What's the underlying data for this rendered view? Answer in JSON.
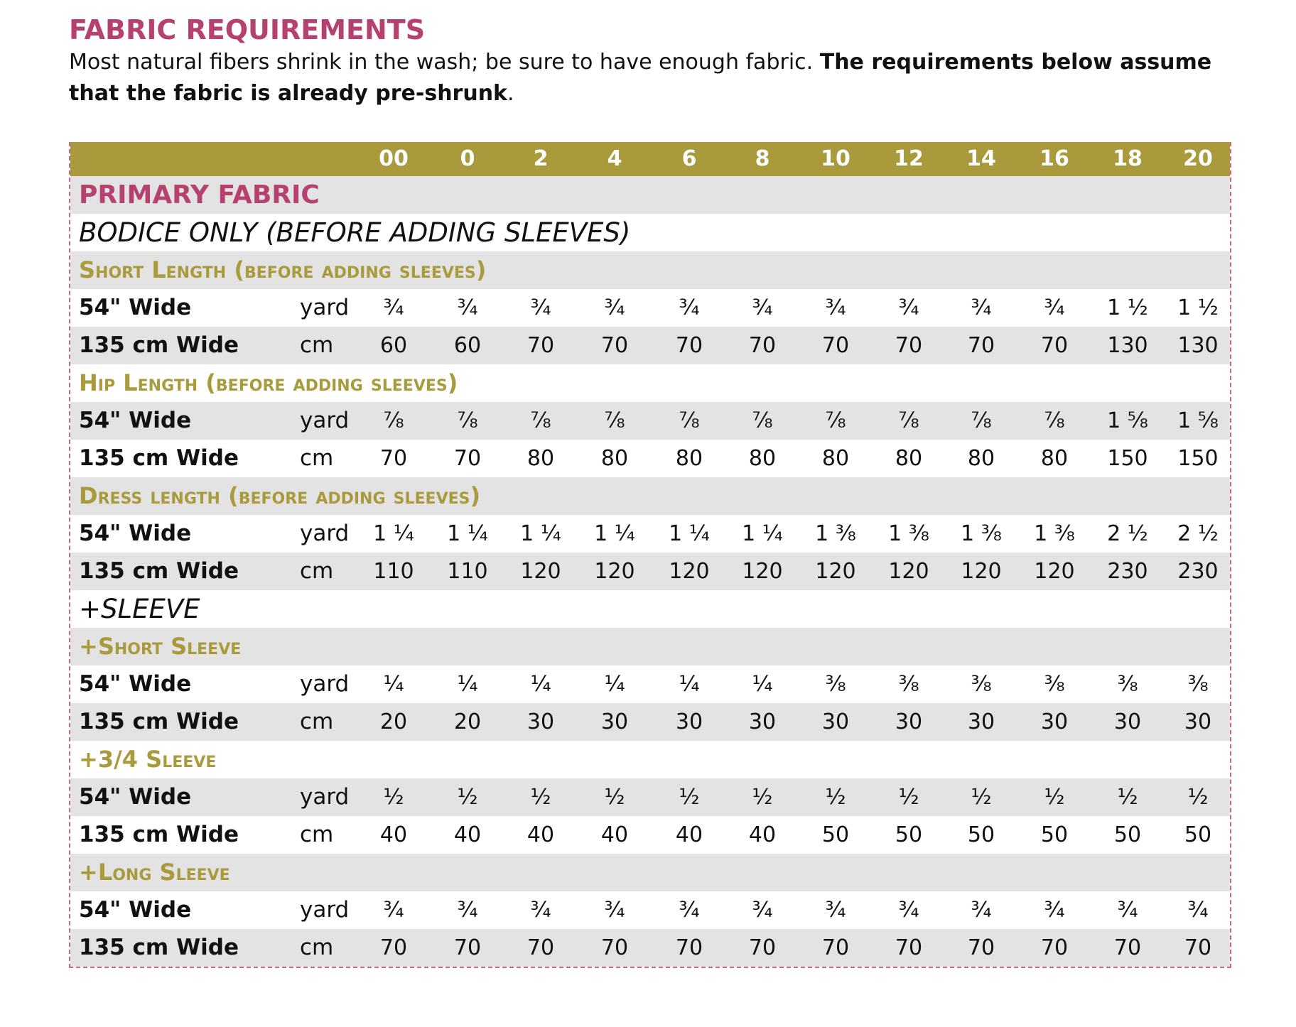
{
  "header": {
    "title": "FABRIC REQUIREMENTS",
    "intro": "Most natural fibers shrink in the wash; be sure to have enough fabric.",
    "intro_bold": "The requirements below assume that the fabric is already pre-shrunk",
    "intro_end": "."
  },
  "table": {
    "sizes": [
      "00",
      "0",
      "2",
      "4",
      "6",
      "8",
      "10",
      "12",
      "14",
      "16",
      "18",
      "20"
    ],
    "title": "PRIMARY FABRIC",
    "groups": [
      {
        "title": "BODICE ONLY (BEFORE ADDING SLEEVES)",
        "subgroups": [
          {
            "title": "Short Length (before adding sleeves)",
            "rows": [
              {
                "label": "54\" Wide",
                "unit": "yard",
                "values": [
                  "¾",
                  "¾",
                  "¾",
                  "¾",
                  "¾",
                  "¾",
                  "¾",
                  "¾",
                  "¾",
                  "¾",
                  "1 ½",
                  "1 ½"
                ]
              },
              {
                "label": "135 cm Wide",
                "unit": "cm",
                "values": [
                  60,
                  60,
                  70,
                  70,
                  70,
                  70,
                  70,
                  70,
                  70,
                  70,
                  130,
                  130
                ]
              }
            ]
          },
          {
            "title": "Hip Length (before adding sleeves)",
            "rows": [
              {
                "label": "54\" Wide",
                "unit": "yard",
                "values": [
                  "⅞",
                  "⅞",
                  "⅞",
                  "⅞",
                  "⅞",
                  "⅞",
                  "⅞",
                  "⅞",
                  "⅞",
                  "⅞",
                  "1 ⅝",
                  "1 ⅝"
                ]
              },
              {
                "label": "135 cm Wide",
                "unit": "cm",
                "values": [
                  70,
                  70,
                  80,
                  80,
                  80,
                  80,
                  80,
                  80,
                  80,
                  80,
                  150,
                  150
                ]
              }
            ]
          },
          {
            "title": "Dress length (before adding sleeves)",
            "rows": [
              {
                "label": "54\" Wide",
                "unit": "yard",
                "values": [
                  "1 ¼",
                  "1 ¼",
                  "1 ¼",
                  "1 ¼",
                  "1 ¼",
                  "1 ¼",
                  "1 ⅜",
                  "1 ⅜",
                  "1 ⅜",
                  "1 ⅜",
                  "2 ½",
                  "2 ½"
                ]
              },
              {
                "label": "135 cm Wide",
                "unit": "cm",
                "values": [
                  110,
                  110,
                  120,
                  120,
                  120,
                  120,
                  120,
                  120,
                  120,
                  120,
                  230,
                  230
                ]
              }
            ]
          }
        ]
      },
      {
        "title": "+SLEEVE",
        "subgroups": [
          {
            "title": "+Short Sleeve",
            "rows": [
              {
                "label": "54\" Wide",
                "unit": "yard",
                "values": [
                  "¼",
                  "¼",
                  "¼",
                  "¼",
                  "¼",
                  "¼",
                  "⅜",
                  "⅜",
                  "⅜",
                  "⅜",
                  "⅜",
                  "⅜"
                ]
              },
              {
                "label": "135 cm Wide",
                "unit": "cm",
                "values": [
                  20,
                  20,
                  30,
                  30,
                  30,
                  30,
                  30,
                  30,
                  30,
                  30,
                  30,
                  30
                ]
              }
            ]
          },
          {
            "title": "+3/4 Sleeve",
            "rows": [
              {
                "label": "54\" Wide",
                "unit": "yard",
                "values": [
                  "½",
                  "½",
                  "½",
                  "½",
                  "½",
                  "½",
                  "½",
                  "½",
                  "½",
                  "½",
                  "½",
                  "½"
                ]
              },
              {
                "label": "135 cm Wide",
                "unit": "cm",
                "values": [
                  40,
                  40,
                  40,
                  40,
                  40,
                  40,
                  50,
                  50,
                  50,
                  50,
                  50,
                  50
                ]
              }
            ]
          },
          {
            "title": "+Long Sleeve",
            "rows": [
              {
                "label": "54\" Wide",
                "unit": "yard",
                "values": [
                  "¾",
                  "¾",
                  "¾",
                  "¾",
                  "¾",
                  "¾",
                  "¾",
                  "¾",
                  "¾",
                  "¾",
                  "¾",
                  "¾"
                ]
              },
              {
                "label": "135 cm Wide",
                "unit": "cm",
                "values": [
                  70,
                  70,
                  70,
                  70,
                  70,
                  70,
                  70,
                  70,
                  70,
                  70,
                  70,
                  70
                ]
              }
            ]
          }
        ]
      }
    ]
  }
}
